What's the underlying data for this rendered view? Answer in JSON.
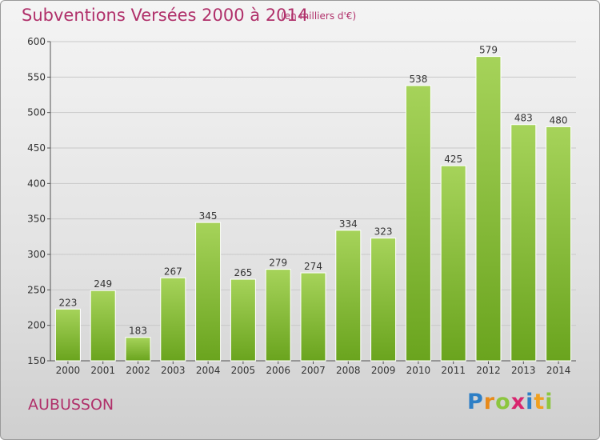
{
  "title": "Subventions Versées 2000 à 2014",
  "subtitle": "(en milliers d'€)",
  "city": "AUBUSSON",
  "logo": {
    "text": "Proxiti",
    "letters": [
      "P",
      "r",
      "o",
      "x",
      "i",
      "t",
      "i"
    ]
  },
  "colors": {
    "title": "#b0306a",
    "bar_light": "#a6d35a",
    "bar_dark": "#6aa41e",
    "grid": "#c8c8c8"
  },
  "chart_data": {
    "type": "bar",
    "categories": [
      "2000",
      "2001",
      "2002",
      "2003",
      "2004",
      "2005",
      "2006",
      "2007",
      "2008",
      "2009",
      "2010",
      "2011",
      "2012",
      "2013",
      "2014"
    ],
    "values": [
      223,
      249,
      183,
      267,
      345,
      265,
      279,
      274,
      334,
      323,
      538,
      425,
      579,
      483,
      480
    ],
    "value_labels": [
      "223",
      "249",
      "183",
      "267",
      "345",
      "265",
      "279",
      "274",
      "334",
      "323",
      "538",
      "425",
      "579",
      "483",
      "480"
    ],
    "title": "Subventions Versées 2000 à 2014",
    "xlabel": "",
    "ylabel": "",
    "ylim": [
      150,
      600
    ],
    "yticks": [
      150,
      200,
      250,
      300,
      350,
      400,
      450,
      500,
      550,
      600
    ],
    "ytick_labels": [
      "150",
      "200",
      "250",
      "300",
      "350",
      "400",
      "450",
      "500",
      "550",
      "600"
    ],
    "grid": true,
    "legend": "none"
  }
}
